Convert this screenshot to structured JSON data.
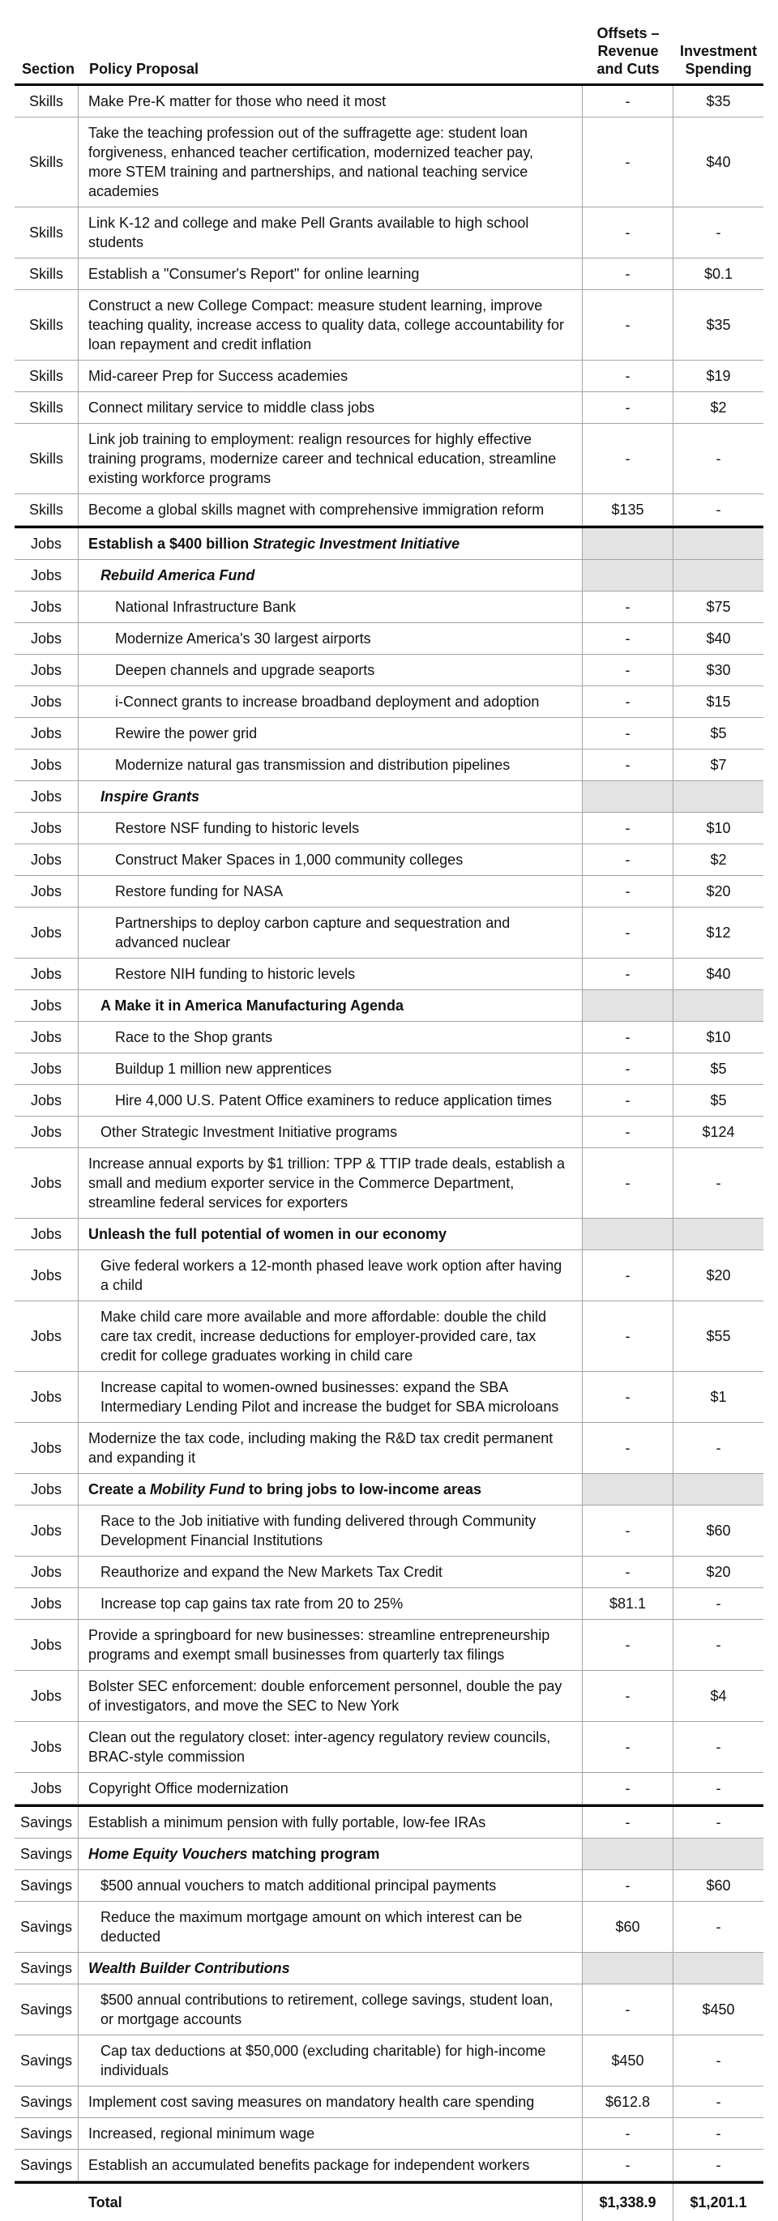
{
  "colors": {
    "row_shading": "#e3e3e3",
    "grid_line": "#a3a3a3",
    "section_border": "#000000"
  },
  "header": {
    "section": "Section",
    "policy": "Policy Proposal",
    "offsets": "Offsets –\nRevenue\nand Cuts",
    "investment": "Investment\nSpending"
  },
  "rows": [
    {
      "group": "skills",
      "section": "Skills",
      "indent": 0,
      "proposal": [
        {
          "text": "Make Pre-K matter for those who need it most"
        }
      ],
      "offsets": "-",
      "investment": "$35"
    },
    {
      "group": "skills",
      "section": "Skills",
      "indent": 0,
      "proposal": [
        {
          "text": "Take the teaching profession out of the suffragette age: student loan forgiveness, enhanced teacher certification, modernized teacher pay, more STEM training and partnerships, and national teaching service academies"
        }
      ],
      "offsets": "-",
      "investment": "$40"
    },
    {
      "group": "skills",
      "section": "Skills",
      "indent": 0,
      "proposal": [
        {
          "text": "Link K-12 and college and make Pell Grants available to high school students"
        }
      ],
      "offsets": "-",
      "investment": "-"
    },
    {
      "group": "skills",
      "section": "Skills",
      "indent": 0,
      "proposal": [
        {
          "text": "Establish a \"Consumer's Report\" for online learning"
        }
      ],
      "offsets": "-",
      "investment": "$0.1"
    },
    {
      "group": "skills",
      "section": "Skills",
      "indent": 0,
      "proposal": [
        {
          "text": "Construct a new College Compact: measure student learning, improve teaching quality, increase access to quality data, college accountability for loan repayment and credit inflation"
        }
      ],
      "offsets": "-",
      "investment": "$35"
    },
    {
      "group": "skills",
      "section": "Skills",
      "indent": 0,
      "proposal": [
        {
          "text": "Mid-career Prep for Success academies"
        }
      ],
      "offsets": "-",
      "investment": "$19"
    },
    {
      "group": "skills",
      "section": "Skills",
      "indent": 0,
      "proposal": [
        {
          "text": "Connect military service to middle class jobs"
        }
      ],
      "offsets": "-",
      "investment": "$2"
    },
    {
      "group": "skills",
      "section": "Skills",
      "indent": 0,
      "proposal": [
        {
          "text": "Link job training to employment: realign resources for highly effective training programs, modernize career and technical education, streamline existing workforce programs"
        }
      ],
      "offsets": "-",
      "investment": "-"
    },
    {
      "group": "skills",
      "section": "Skills",
      "indent": 0,
      "proposal": [
        {
          "text": "Become a global skills magnet with comprehensive immigration reform"
        }
      ],
      "offsets": "$135",
      "investment": "-"
    },
    {
      "group": "jobs",
      "section": "Jobs",
      "indent": 0,
      "shaded": true,
      "proposal": [
        {
          "text": "Establish a $400 billion ",
          "bold": true
        },
        {
          "text": "Strategic Investment Initiative",
          "bold": true,
          "italic": true
        }
      ],
      "offsets": "",
      "investment": ""
    },
    {
      "group": "jobs",
      "section": "Jobs",
      "indent": 1,
      "shaded": true,
      "proposal": [
        {
          "text": "Rebuild America Fund",
          "bold": true,
          "italic": true
        }
      ],
      "offsets": "",
      "investment": ""
    },
    {
      "group": "jobs",
      "section": "Jobs",
      "indent": 2,
      "proposal": [
        {
          "text": "National Infrastructure Bank"
        }
      ],
      "offsets": "-",
      "investment": "$75"
    },
    {
      "group": "jobs",
      "section": "Jobs",
      "indent": 2,
      "proposal": [
        {
          "text": "Modernize America's 30 largest airports"
        }
      ],
      "offsets": "-",
      "investment": "$40"
    },
    {
      "group": "jobs",
      "section": "Jobs",
      "indent": 2,
      "proposal": [
        {
          "text": "Deepen channels and upgrade seaports"
        }
      ],
      "offsets": "-",
      "investment": "$30"
    },
    {
      "group": "jobs",
      "section": "Jobs",
      "indent": 2,
      "proposal": [
        {
          "text": "i-Connect grants to increase broadband deployment and adoption"
        }
      ],
      "offsets": "-",
      "investment": "$15"
    },
    {
      "group": "jobs",
      "section": "Jobs",
      "indent": 2,
      "proposal": [
        {
          "text": "Rewire the power grid"
        }
      ],
      "offsets": "-",
      "investment": "$5"
    },
    {
      "group": "jobs",
      "section": "Jobs",
      "indent": 2,
      "proposal": [
        {
          "text": "Modernize natural gas transmission and distribution pipelines"
        }
      ],
      "offsets": "-",
      "investment": "$7"
    },
    {
      "group": "jobs",
      "section": "Jobs",
      "indent": 1,
      "shaded": true,
      "proposal": [
        {
          "text": "Inspire Grants",
          "bold": true,
          "italic": true
        }
      ],
      "offsets": "",
      "investment": ""
    },
    {
      "group": "jobs",
      "section": "Jobs",
      "indent": 2,
      "proposal": [
        {
          "text": "Restore NSF funding to historic levels"
        }
      ],
      "offsets": "-",
      "investment": "$10"
    },
    {
      "group": "jobs",
      "section": "Jobs",
      "indent": 2,
      "proposal": [
        {
          "text": "Construct Maker Spaces in 1,000 community colleges"
        }
      ],
      "offsets": "-",
      "investment": "$2"
    },
    {
      "group": "jobs",
      "section": "Jobs",
      "indent": 2,
      "proposal": [
        {
          "text": "Restore funding for NASA"
        }
      ],
      "offsets": "-",
      "investment": "$20"
    },
    {
      "group": "jobs",
      "section": "Jobs",
      "indent": 2,
      "proposal": [
        {
          "text": "Partnerships to deploy carbon capture and sequestration and advanced nuclear"
        }
      ],
      "offsets": "-",
      "investment": "$12"
    },
    {
      "group": "jobs",
      "section": "Jobs",
      "indent": 2,
      "proposal": [
        {
          "text": "Restore NIH funding to historic levels"
        }
      ],
      "offsets": "-",
      "investment": "$40"
    },
    {
      "group": "jobs",
      "section": "Jobs",
      "indent": 1,
      "shaded": true,
      "proposal": [
        {
          "text": "A Make it in America Manufacturing Agenda",
          "bold": true
        }
      ],
      "offsets": "",
      "investment": ""
    },
    {
      "group": "jobs",
      "section": "Jobs",
      "indent": 2,
      "proposal": [
        {
          "text": "Race to the Shop grants"
        }
      ],
      "offsets": "-",
      "investment": "$10"
    },
    {
      "group": "jobs",
      "section": "Jobs",
      "indent": 2,
      "proposal": [
        {
          "text": "Buildup 1 million new apprentices"
        }
      ],
      "offsets": "-",
      "investment": "$5"
    },
    {
      "group": "jobs",
      "section": "Jobs",
      "indent": 2,
      "proposal": [
        {
          "text": "Hire 4,000 U.S. Patent Office examiners to reduce application times"
        }
      ],
      "offsets": "-",
      "investment": "$5"
    },
    {
      "group": "jobs",
      "section": "Jobs",
      "indent": 1,
      "proposal": [
        {
          "text": "Other Strategic Investment Initiative programs"
        }
      ],
      "offsets": "-",
      "investment": "$124"
    },
    {
      "group": "jobs",
      "section": "Jobs",
      "indent": 0,
      "proposal": [
        {
          "text": "Increase annual exports by $1 trillion: TPP & TTIP trade deals, establish a small and medium exporter service in the Commerce Department, streamline federal services for exporters"
        }
      ],
      "offsets": "-",
      "investment": "-"
    },
    {
      "group": "jobs",
      "section": "Jobs",
      "indent": 0,
      "shaded": true,
      "proposal": [
        {
          "text": "Unleash the full potential of women in our economy",
          "bold": true
        }
      ],
      "offsets": "",
      "investment": ""
    },
    {
      "group": "jobs",
      "section": "Jobs",
      "indent": 1,
      "proposal": [
        {
          "text": "Give federal workers a 12-month phased leave work option after having a child"
        }
      ],
      "offsets": "-",
      "investment": "$20"
    },
    {
      "group": "jobs",
      "section": "Jobs",
      "indent": 1,
      "proposal": [
        {
          "text": "Make child care more available and more affordable: double the child care tax credit, increase deductions for employer-provided care, tax credit for college graduates working in child care"
        }
      ],
      "offsets": "-",
      "investment": "$55"
    },
    {
      "group": "jobs",
      "section": "Jobs",
      "indent": 1,
      "proposal": [
        {
          "text": "Increase capital to women-owned businesses: expand the SBA Intermediary Lending Pilot and increase the budget for SBA microloans"
        }
      ],
      "offsets": "-",
      "investment": "$1"
    },
    {
      "group": "jobs",
      "section": "Jobs",
      "indent": 0,
      "proposal": [
        {
          "text": "Modernize the tax code, including making the R&D tax credit permanent and expanding it"
        }
      ],
      "offsets": "-",
      "investment": "-"
    },
    {
      "group": "jobs",
      "section": "Jobs",
      "indent": 0,
      "shaded": true,
      "proposal": [
        {
          "text": "Create a ",
          "bold": true
        },
        {
          "text": "Mobility Fund",
          "bold": true,
          "italic": true
        },
        {
          "text": " to bring jobs to low-income areas",
          "bold": true
        }
      ],
      "offsets": "",
      "investment": ""
    },
    {
      "group": "jobs",
      "section": "Jobs",
      "indent": 1,
      "proposal": [
        {
          "text": "Race to the Job initiative with funding delivered through  Community Development Financial Institutions"
        }
      ],
      "offsets": "-",
      "investment": "$60"
    },
    {
      "group": "jobs",
      "section": "Jobs",
      "indent": 1,
      "proposal": [
        {
          "text": "Reauthorize and expand the New Markets Tax Credit"
        }
      ],
      "offsets": "-",
      "investment": "$20"
    },
    {
      "group": "jobs",
      "section": "Jobs",
      "indent": 1,
      "proposal": [
        {
          "text": "Increase top cap gains tax rate from 20 to 25%"
        }
      ],
      "offsets": "$81.1",
      "investment": "-"
    },
    {
      "group": "jobs",
      "section": "Jobs",
      "indent": 0,
      "proposal": [
        {
          "text": "Provide a springboard for new businesses: streamline entrepreneurship programs and exempt small businesses from quarterly tax filings"
        }
      ],
      "offsets": "-",
      "investment": "-"
    },
    {
      "group": "jobs",
      "section": "Jobs",
      "indent": 0,
      "proposal": [
        {
          "text": "Bolster SEC enforcement: double enforcement personnel, double the pay of investigators, and move the SEC to New York"
        }
      ],
      "offsets": "-",
      "investment": "$4"
    },
    {
      "group": "jobs",
      "section": "Jobs",
      "indent": 0,
      "proposal": [
        {
          "text": "Clean out the regulatory closet: inter-agency regulatory review councils, BRAC-style commission"
        }
      ],
      "offsets": "-",
      "investment": "-"
    },
    {
      "group": "jobs",
      "section": "Jobs",
      "indent": 0,
      "proposal": [
        {
          "text": "Copyright Office modernization"
        }
      ],
      "offsets": "-",
      "investment": "-"
    },
    {
      "group": "savings",
      "section": "Savings",
      "indent": 0,
      "proposal": [
        {
          "text": "Establish a minimum pension with fully portable, low-fee IRAs"
        }
      ],
      "offsets": "-",
      "investment": "-"
    },
    {
      "group": "savings",
      "section": "Savings",
      "indent": 0,
      "shaded": true,
      "proposal": [
        {
          "text": "Home Equity Vouchers",
          "bold": true,
          "italic": true
        },
        {
          "text": " matching program",
          "bold": true
        }
      ],
      "offsets": "",
      "investment": ""
    },
    {
      "group": "savings",
      "section": "Savings",
      "indent": 1,
      "proposal": [
        {
          "text": "$500 annual vouchers to match additional principal payments"
        }
      ],
      "offsets": "-",
      "investment": "$60"
    },
    {
      "group": "savings",
      "section": "Savings",
      "indent": 1,
      "proposal": [
        {
          "text": "Reduce the maximum mortgage amount on which interest can be deducted"
        }
      ],
      "offsets": "$60",
      "investment": "-"
    },
    {
      "group": "savings",
      "section": "Savings",
      "indent": 0,
      "shaded": true,
      "proposal": [
        {
          "text": "Wealth Builder Contributions",
          "bold": true,
          "italic": true
        }
      ],
      "offsets": "",
      "investment": ""
    },
    {
      "group": "savings",
      "section": "Savings",
      "indent": 1,
      "proposal": [
        {
          "text": "$500 annual contributions to retirement, college savings, student loan, or mortgage accounts"
        }
      ],
      "offsets": "-",
      "investment": "$450"
    },
    {
      "group": "savings",
      "section": "Savings",
      "indent": 1,
      "proposal": [
        {
          "text": "Cap tax deductions at $50,000 (excluding charitable) for high-income individuals"
        }
      ],
      "offsets": "$450",
      "investment": "-"
    },
    {
      "group": "savings",
      "section": "Savings",
      "indent": 0,
      "proposal": [
        {
          "text": "Implement cost saving measures on mandatory health care spending"
        }
      ],
      "offsets": "$612.8",
      "investment": "-"
    },
    {
      "group": "savings",
      "section": "Savings",
      "indent": 0,
      "proposal": [
        {
          "text": "Increased, regional minimum wage"
        }
      ],
      "offsets": "-",
      "investment": "-"
    },
    {
      "group": "savings",
      "section": "Savings",
      "indent": 0,
      "proposal": [
        {
          "text": "Establish an accumulated benefits package for independent workers"
        }
      ],
      "offsets": "-",
      "investment": "-"
    },
    {
      "group": "total",
      "section": "",
      "indent": 0,
      "total": true,
      "proposal": [
        {
          "text": "Total",
          "bold": true
        }
      ],
      "offsets": "$1,338.9",
      "investment": "$1,201.1"
    }
  ]
}
